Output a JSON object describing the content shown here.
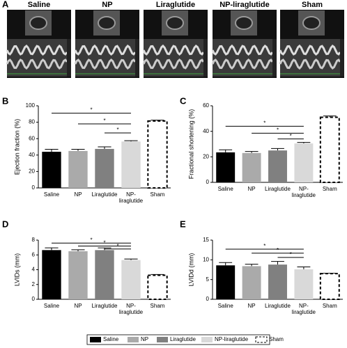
{
  "panel_a": {
    "label": "A",
    "groups": [
      "Saline",
      "NP",
      "Liraglutide",
      "NP-liraglutide",
      "Sham"
    ]
  },
  "chart_data": [
    {
      "type": "bar",
      "panel_label": "B",
      "ylabel": "Ejection fraction (%)",
      "categories": [
        "Saline",
        "NP",
        "Liraglutide",
        "NP-\nliraglutide",
        "Sham"
      ],
      "values": [
        44,
        45,
        47.5,
        56.5,
        81.5
      ],
      "errors": [
        3,
        2,
        2.5,
        1,
        1
      ],
      "colors": [
        "#000000",
        "#aaaaaa",
        "#808080",
        "#d9d9d9",
        "#ffffff"
      ],
      "dashed": [
        false,
        false,
        false,
        false,
        true
      ],
      "ylim": [
        0,
        100
      ],
      "yticks": [
        0,
        20,
        40,
        60,
        80,
        100
      ],
      "significance": [
        {
          "from": 0,
          "to": 3,
          "y": 91,
          "label": "*"
        },
        {
          "from": 1,
          "to": 3,
          "y": 78,
          "label": "*"
        },
        {
          "from": 2,
          "to": 3,
          "y": 67,
          "label": "*"
        }
      ]
    },
    {
      "type": "bar",
      "panel_label": "C",
      "ylabel": "Fractional shortening (%)",
      "categories": [
        "Saline",
        "NP",
        "Liraglutide",
        "NP-\nliraglutide",
        "Sham"
      ],
      "values": [
        23.5,
        23,
        25,
        30.5,
        51
      ],
      "errors": [
        2,
        1.2,
        1.5,
        0.8,
        1
      ],
      "colors": [
        "#000000",
        "#aaaaaa",
        "#808080",
        "#d9d9d9",
        "#ffffff"
      ],
      "dashed": [
        false,
        false,
        false,
        false,
        true
      ],
      "ylim": [
        0,
        60
      ],
      "yticks": [
        0,
        20,
        40,
        60
      ],
      "significance": [
        {
          "from": 0,
          "to": 3,
          "y": 44,
          "label": "*"
        },
        {
          "from": 1,
          "to": 3,
          "y": 38.5,
          "label": "*"
        },
        {
          "from": 2,
          "to": 3,
          "y": 34,
          "label": "*"
        }
      ]
    },
    {
      "type": "bar",
      "panel_label": "D",
      "ylabel": "LVIDs (mm)",
      "categories": [
        "Saline",
        "NP",
        "Liraglutide",
        "NP-\nliraglutide",
        "Sham"
      ],
      "values": [
        6.65,
        6.5,
        6.65,
        5.3,
        3.25
      ],
      "errors": [
        0.3,
        0.2,
        0.3,
        0.15,
        0.1
      ],
      "colors": [
        "#000000",
        "#aaaaaa",
        "#808080",
        "#d9d9d9",
        "#ffffff"
      ],
      "dashed": [
        false,
        false,
        false,
        false,
        true
      ],
      "ylim": [
        0,
        8
      ],
      "yticks": [
        0,
        2,
        4,
        6,
        8
      ],
      "significance": [
        {
          "from": 0,
          "to": 3,
          "y": 7.6,
          "label": "*"
        },
        {
          "from": 1,
          "to": 3,
          "y": 7.2,
          "label": "*"
        },
        {
          "from": 2,
          "to": 3,
          "y": 6.8,
          "label": "*"
        }
      ]
    },
    {
      "type": "bar",
      "panel_label": "E",
      "ylabel": "LVIDd (mm)",
      "categories": [
        "Saline",
        "NP",
        "Liraglutide",
        "NP-\nliraglutide",
        "Sham"
      ],
      "values": [
        8.6,
        8.4,
        8.8,
        7.6,
        6.5
      ],
      "errors": [
        0.7,
        0.5,
        0.8,
        0.6,
        0.1
      ],
      "colors": [
        "#000000",
        "#aaaaaa",
        "#808080",
        "#d9d9d9",
        "#ffffff"
      ],
      "dashed": [
        false,
        false,
        false,
        false,
        true
      ],
      "ylim": [
        0,
        15
      ],
      "yticks": [
        0,
        5,
        10,
        15
      ],
      "significance": [
        {
          "from": 0,
          "to": 3,
          "y": 12.7,
          "label": "*"
        },
        {
          "from": 1,
          "to": 3,
          "y": 11.7,
          "label": "*"
        },
        {
          "from": 2,
          "to": 3,
          "y": 10.6,
          "label": "*"
        }
      ]
    }
  ],
  "legend": {
    "entries": [
      {
        "name": "Saline",
        "color": "#000000",
        "dashed": false
      },
      {
        "name": "NP",
        "color": "#aaaaaa",
        "dashed": false
      },
      {
        "name": "Liraglutide",
        "color": "#808080",
        "dashed": false
      },
      {
        "name": "NP-liraglutide",
        "color": "#d9d9d9",
        "dashed": false
      },
      {
        "name": "Sham",
        "color": "#ffffff",
        "dashed": true
      }
    ]
  }
}
